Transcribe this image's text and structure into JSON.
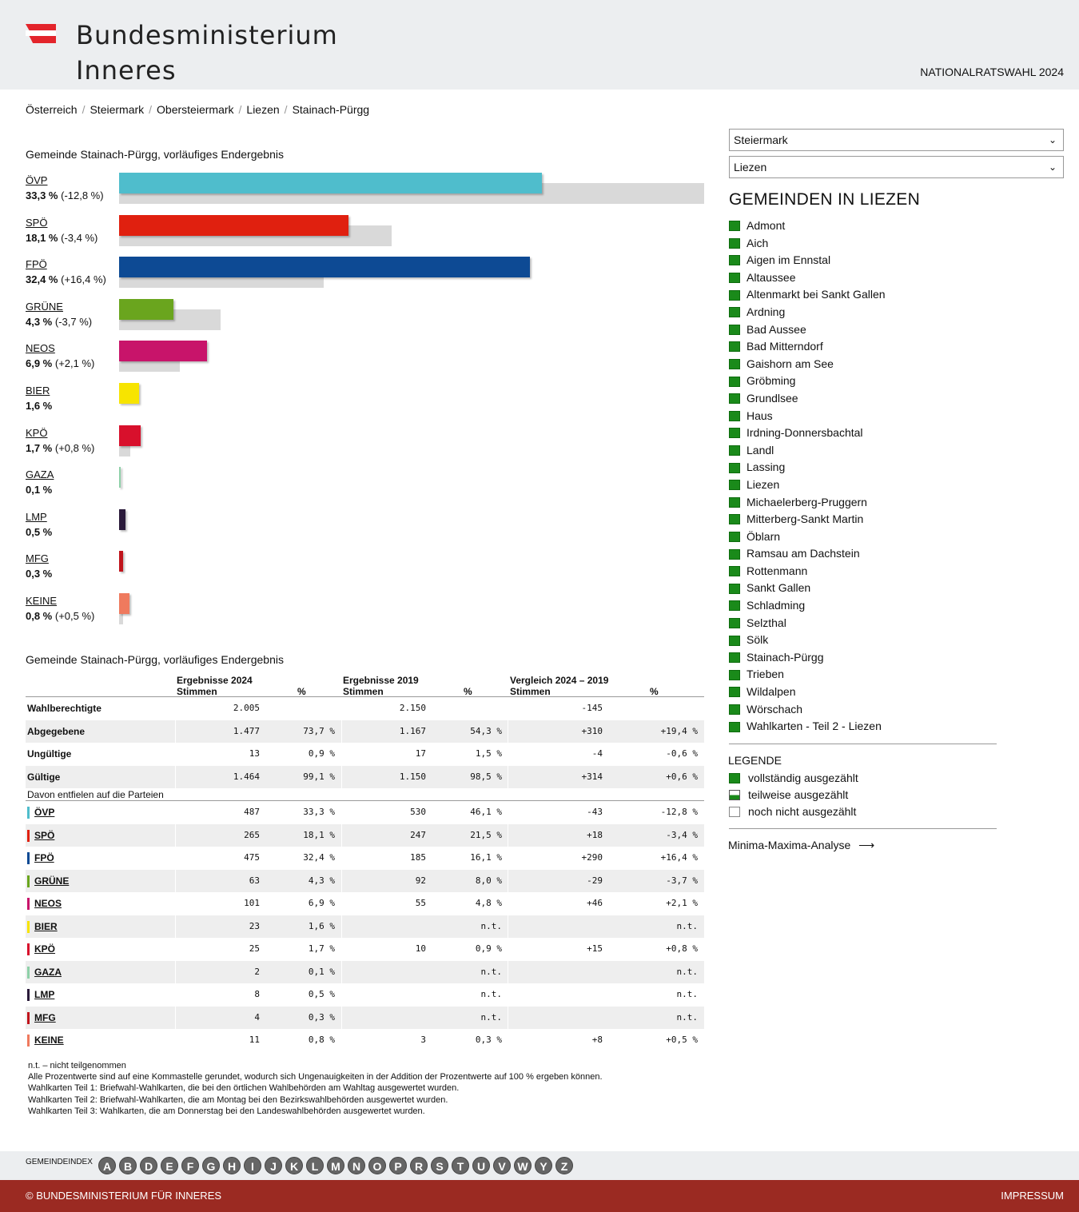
{
  "header": {
    "logo_line1": "Bundesministerium",
    "logo_line2": "Inneres",
    "election": "NATIONALRATSWAHL 2024"
  },
  "breadcrumb": [
    "Österreich",
    "Steiermark",
    "Obersteiermark",
    "Liezen",
    "Stainach-Pürgg"
  ],
  "chart": {
    "title": "Gemeinde Stainach-Pürgg, vorläufiges Endergebnis"
  },
  "chart_data": {
    "type": "bar",
    "orientation": "horizontal",
    "title": "Gemeinde Stainach-Pürgg, vorläufiges Endergebnis",
    "categories": [
      "ÖVP",
      "SPÖ",
      "FPÖ",
      "GRÜNE",
      "NEOS",
      "BIER",
      "KPÖ",
      "GAZA",
      "LMP",
      "MFG",
      "KEINE"
    ],
    "series": [
      {
        "name": "2024",
        "values": [
          33.3,
          18.1,
          32.4,
          4.3,
          6.9,
          1.6,
          1.7,
          0.1,
          0.5,
          0.3,
          0.8
        ]
      },
      {
        "name": "2019",
        "values": [
          46.1,
          21.5,
          16.1,
          8.0,
          4.8,
          null,
          0.9,
          null,
          null,
          null,
          0.3
        ]
      }
    ],
    "value_labels": [
      "33,3 %",
      "18,1 %",
      "32,4 %",
      "4,3 %",
      "6,9 %",
      "1,6 %",
      "1,7 %",
      "0,1 %",
      "0,5 %",
      "0,3 %",
      "0,8 %"
    ],
    "diff_labels": [
      "(-12,8 %)",
      "(-3,4 %)",
      "(+16,4 %)",
      "(-3,7 %)",
      "(+2,1 %)",
      "",
      "(+0,8 %)",
      "",
      "",
      "",
      "(+0,5 %)"
    ],
    "colors": [
      "#4fbdcc",
      "#e0200f",
      "#0d4a94",
      "#6aa51e",
      "#c8146a",
      "#f7e400",
      "#d8102c",
      "#8ed0a8",
      "#2a1a3a",
      "#c0141c",
      "#ef7a5e"
    ]
  },
  "table": {
    "title": "Gemeinde Stainach-Pürgg, vorläufiges Endergebnis",
    "head": {
      "g2024": "Ergebnisse 2024",
      "g2019": "Ergebnisse 2019",
      "gcmp": "Vergleich 2024 – 2019",
      "stimmen": "Stimmen",
      "pct": "%"
    },
    "summary_rows": [
      {
        "label": "Wahlberechtigte",
        "v24": "2.005",
        "p24": "",
        "v19": "2.150",
        "p19": "",
        "dv": "-145",
        "dp": ""
      },
      {
        "label": "Abgegebene",
        "v24": "1.477",
        "p24": "73,7 %",
        "v19": "1.167",
        "p19": "54,3 %",
        "dv": "+310",
        "dp": "+19,4 %"
      },
      {
        "label": "Ungültige",
        "v24": "13",
        "p24": "0,9 %",
        "v19": "17",
        "p19": "1,5 %",
        "dv": "-4",
        "dp": "-0,6 %"
      },
      {
        "label": "Gültige",
        "v24": "1.464",
        "p24": "99,1 %",
        "v19": "1.150",
        "p19": "98,5 %",
        "dv": "+314",
        "dp": "+0,6 %"
      }
    ],
    "sub_header": "Davon entfielen auf die Parteien",
    "party_rows": [
      {
        "label": "ÖVP",
        "color": "#4fbdcc",
        "v24": "487",
        "p24": "33,3 %",
        "v19": "530",
        "p19": "46,1 %",
        "dv": "-43",
        "dp": "-12,8 %"
      },
      {
        "label": "SPÖ",
        "color": "#e0200f",
        "v24": "265",
        "p24": "18,1 %",
        "v19": "247",
        "p19": "21,5 %",
        "dv": "+18",
        "dp": "-3,4 %"
      },
      {
        "label": "FPÖ",
        "color": "#0d4a94",
        "v24": "475",
        "p24": "32,4 %",
        "v19": "185",
        "p19": "16,1 %",
        "dv": "+290",
        "dp": "+16,4 %"
      },
      {
        "label": "GRÜNE",
        "color": "#6aa51e",
        "v24": "63",
        "p24": "4,3 %",
        "v19": "92",
        "p19": "8,0 %",
        "dv": "-29",
        "dp": "-3,7 %"
      },
      {
        "label": "NEOS",
        "color": "#c8146a",
        "v24": "101",
        "p24": "6,9 %",
        "v19": "55",
        "p19": "4,8 %",
        "dv": "+46",
        "dp": "+2,1 %"
      },
      {
        "label": "BIER",
        "color": "#f7e400",
        "v24": "23",
        "p24": "1,6 %",
        "v19": "",
        "p19": "n.t.",
        "dv": "",
        "dp": "n.t."
      },
      {
        "label": "KPÖ",
        "color": "#d8102c",
        "v24": "25",
        "p24": "1,7 %",
        "v19": "10",
        "p19": "0,9 %",
        "dv": "+15",
        "dp": "+0,8 %"
      },
      {
        "label": "GAZA",
        "color": "#8ed0a8",
        "v24": "2",
        "p24": "0,1 %",
        "v19": "",
        "p19": "n.t.",
        "dv": "",
        "dp": "n.t."
      },
      {
        "label": "LMP",
        "color": "#2a1a3a",
        "v24": "8",
        "p24": "0,5 %",
        "v19": "",
        "p19": "n.t.",
        "dv": "",
        "dp": "n.t."
      },
      {
        "label": "MFG",
        "color": "#c0141c",
        "v24": "4",
        "p24": "0,3 %",
        "v19": "",
        "p19": "n.t.",
        "dv": "",
        "dp": "n.t."
      },
      {
        "label": "KEINE",
        "color": "#ef7a5e",
        "v24": "11",
        "p24": "0,8 %",
        "v19": "3",
        "p19": "0,3 %",
        "dv": "+8",
        "dp": "+0,5 %"
      }
    ],
    "notes": [
      "n.t. – nicht teilgenommen",
      "Alle Prozentwerte sind auf eine Kommastelle gerundet, wodurch sich Ungenauigkeiten in der Addition der Prozentwerte auf 100 % ergeben können.",
      "Wahlkarten Teil 1: Briefwahl-Wahlkarten, die bei den örtlichen Wahlbehörden am Wahltag ausgewertet wurden.",
      "Wahlkarten Teil 2: Briefwahl-Wahlkarten, die am Montag bei den Bezirkswahlbehörden ausgewertet wurden.",
      "Wahlkarten Teil 3: Wahlkarten, die am Donnerstag bei den Landeswahlbehörden ausgewertet wurden."
    ]
  },
  "sidebar": {
    "select_state": "Steiermark",
    "select_district": "Liezen",
    "title": "GEMEINDEN IN LIEZEN",
    "gemeinden": [
      "Admont",
      "Aich",
      "Aigen im Ennstal",
      "Altaussee",
      "Altenmarkt bei Sankt Gallen",
      "Ardning",
      "Bad Aussee",
      "Bad Mitterndorf",
      "Gaishorn am See",
      "Gröbming",
      "Grundlsee",
      "Haus",
      "Irdning-Donnersbachtal",
      "Landl",
      "Lassing",
      "Liezen",
      "Michaelerberg-Pruggern",
      "Mitterberg-Sankt Martin",
      "Öblarn",
      "Ramsau am Dachstein",
      "Rottenmann",
      "Sankt Gallen",
      "Schladming",
      "Selzthal",
      "Sölk",
      "Stainach-Pürgg",
      "Trieben",
      "Wildalpen",
      "Wörschach",
      "Wahlkarten - Teil 2 - Liezen"
    ],
    "legend_title": "LEGENDE",
    "legend": [
      "vollständig ausgezählt",
      "teilweise ausgezählt",
      "noch nicht ausgezählt"
    ],
    "minmax": "Minima-Maxima-Analyse"
  },
  "index": {
    "label": "GEMEINDEINDEX",
    "letters": [
      "A",
      "B",
      "D",
      "E",
      "F",
      "G",
      "H",
      "I",
      "J",
      "K",
      "L",
      "M",
      "N",
      "O",
      "P",
      "R",
      "S",
      "T",
      "U",
      "V",
      "W",
      "Y",
      "Z"
    ]
  },
  "footer": {
    "left": "© BUNDESMINISTERIUM FÜR INNERES",
    "right": "IMPRESSUM"
  }
}
